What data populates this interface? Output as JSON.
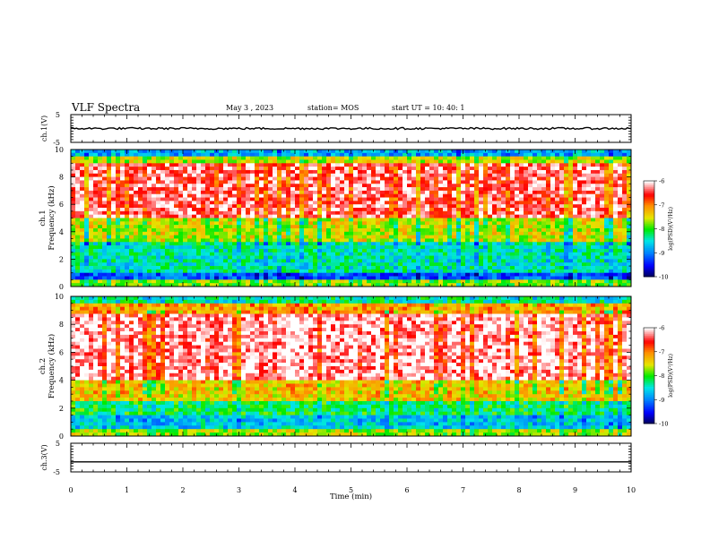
{
  "header": {
    "title": "VLF Spectra",
    "date": "May 3 , 2023",
    "station": "station= MOS",
    "start": "start UT = 10: 40: 1"
  },
  "chart_data": [
    {
      "type": "line",
      "panel": "ch1-waveform",
      "ylabel": "ch.1(V)",
      "ylim": [
        -5,
        5
      ],
      "yticks": [
        "5",
        "-5"
      ],
      "xlim": [
        0,
        10
      ],
      "series": [
        {
          "values": [
            0.0,
            0.0
          ]
        }
      ]
    },
    {
      "type": "heatmap",
      "panel": "ch1-spectrogram",
      "ylabel": "ch.1\nFrequency (kHz)",
      "xlim": [
        0,
        10
      ],
      "ylim": [
        0,
        10
      ],
      "yticks": [
        "0",
        "2",
        "4",
        "6",
        "8",
        "10"
      ],
      "colorbar": {
        "label": "log(PSD)(V²/Hz)",
        "range": [
          -10,
          -6
        ],
        "ticks": [
          "-6",
          "-7",
          "-8",
          "-9",
          "-10"
        ]
      }
    },
    {
      "type": "heatmap",
      "panel": "ch2-spectrogram",
      "ylabel": "ch.2\nFrequency (kHz)",
      "xlim": [
        0,
        10
      ],
      "ylim": [
        0,
        10
      ],
      "yticks": [
        "0",
        "2",
        "4",
        "6",
        "8",
        "10"
      ],
      "colorbar": {
        "label": "log(PSD)(V²/Hz)",
        "range": [
          -10,
          -6
        ],
        "ticks": [
          "-6",
          "-7",
          "-8",
          "-9",
          "-10"
        ]
      }
    },
    {
      "type": "line",
      "panel": "ch3-waveform",
      "ylabel": "ch.3(V)",
      "ylim": [
        -5,
        5
      ],
      "yticks": [
        "5",
        "-5"
      ],
      "xlim": [
        0,
        10
      ],
      "xlabel": "Time (min)",
      "xticks": [
        "0",
        "1",
        "2",
        "3",
        "4",
        "5",
        "6",
        "7",
        "8",
        "9",
        "10"
      ],
      "series": [
        {
          "values": [
            -1.5,
            -1.5
          ]
        }
      ]
    }
  ],
  "colors": {
    "scale": [
      "#000033",
      "#0000ff",
      "#0080ff",
      "#00ffff",
      "#00ff00",
      "#ffff00",
      "#ff8000",
      "#ff0000",
      "#ffffff"
    ]
  }
}
